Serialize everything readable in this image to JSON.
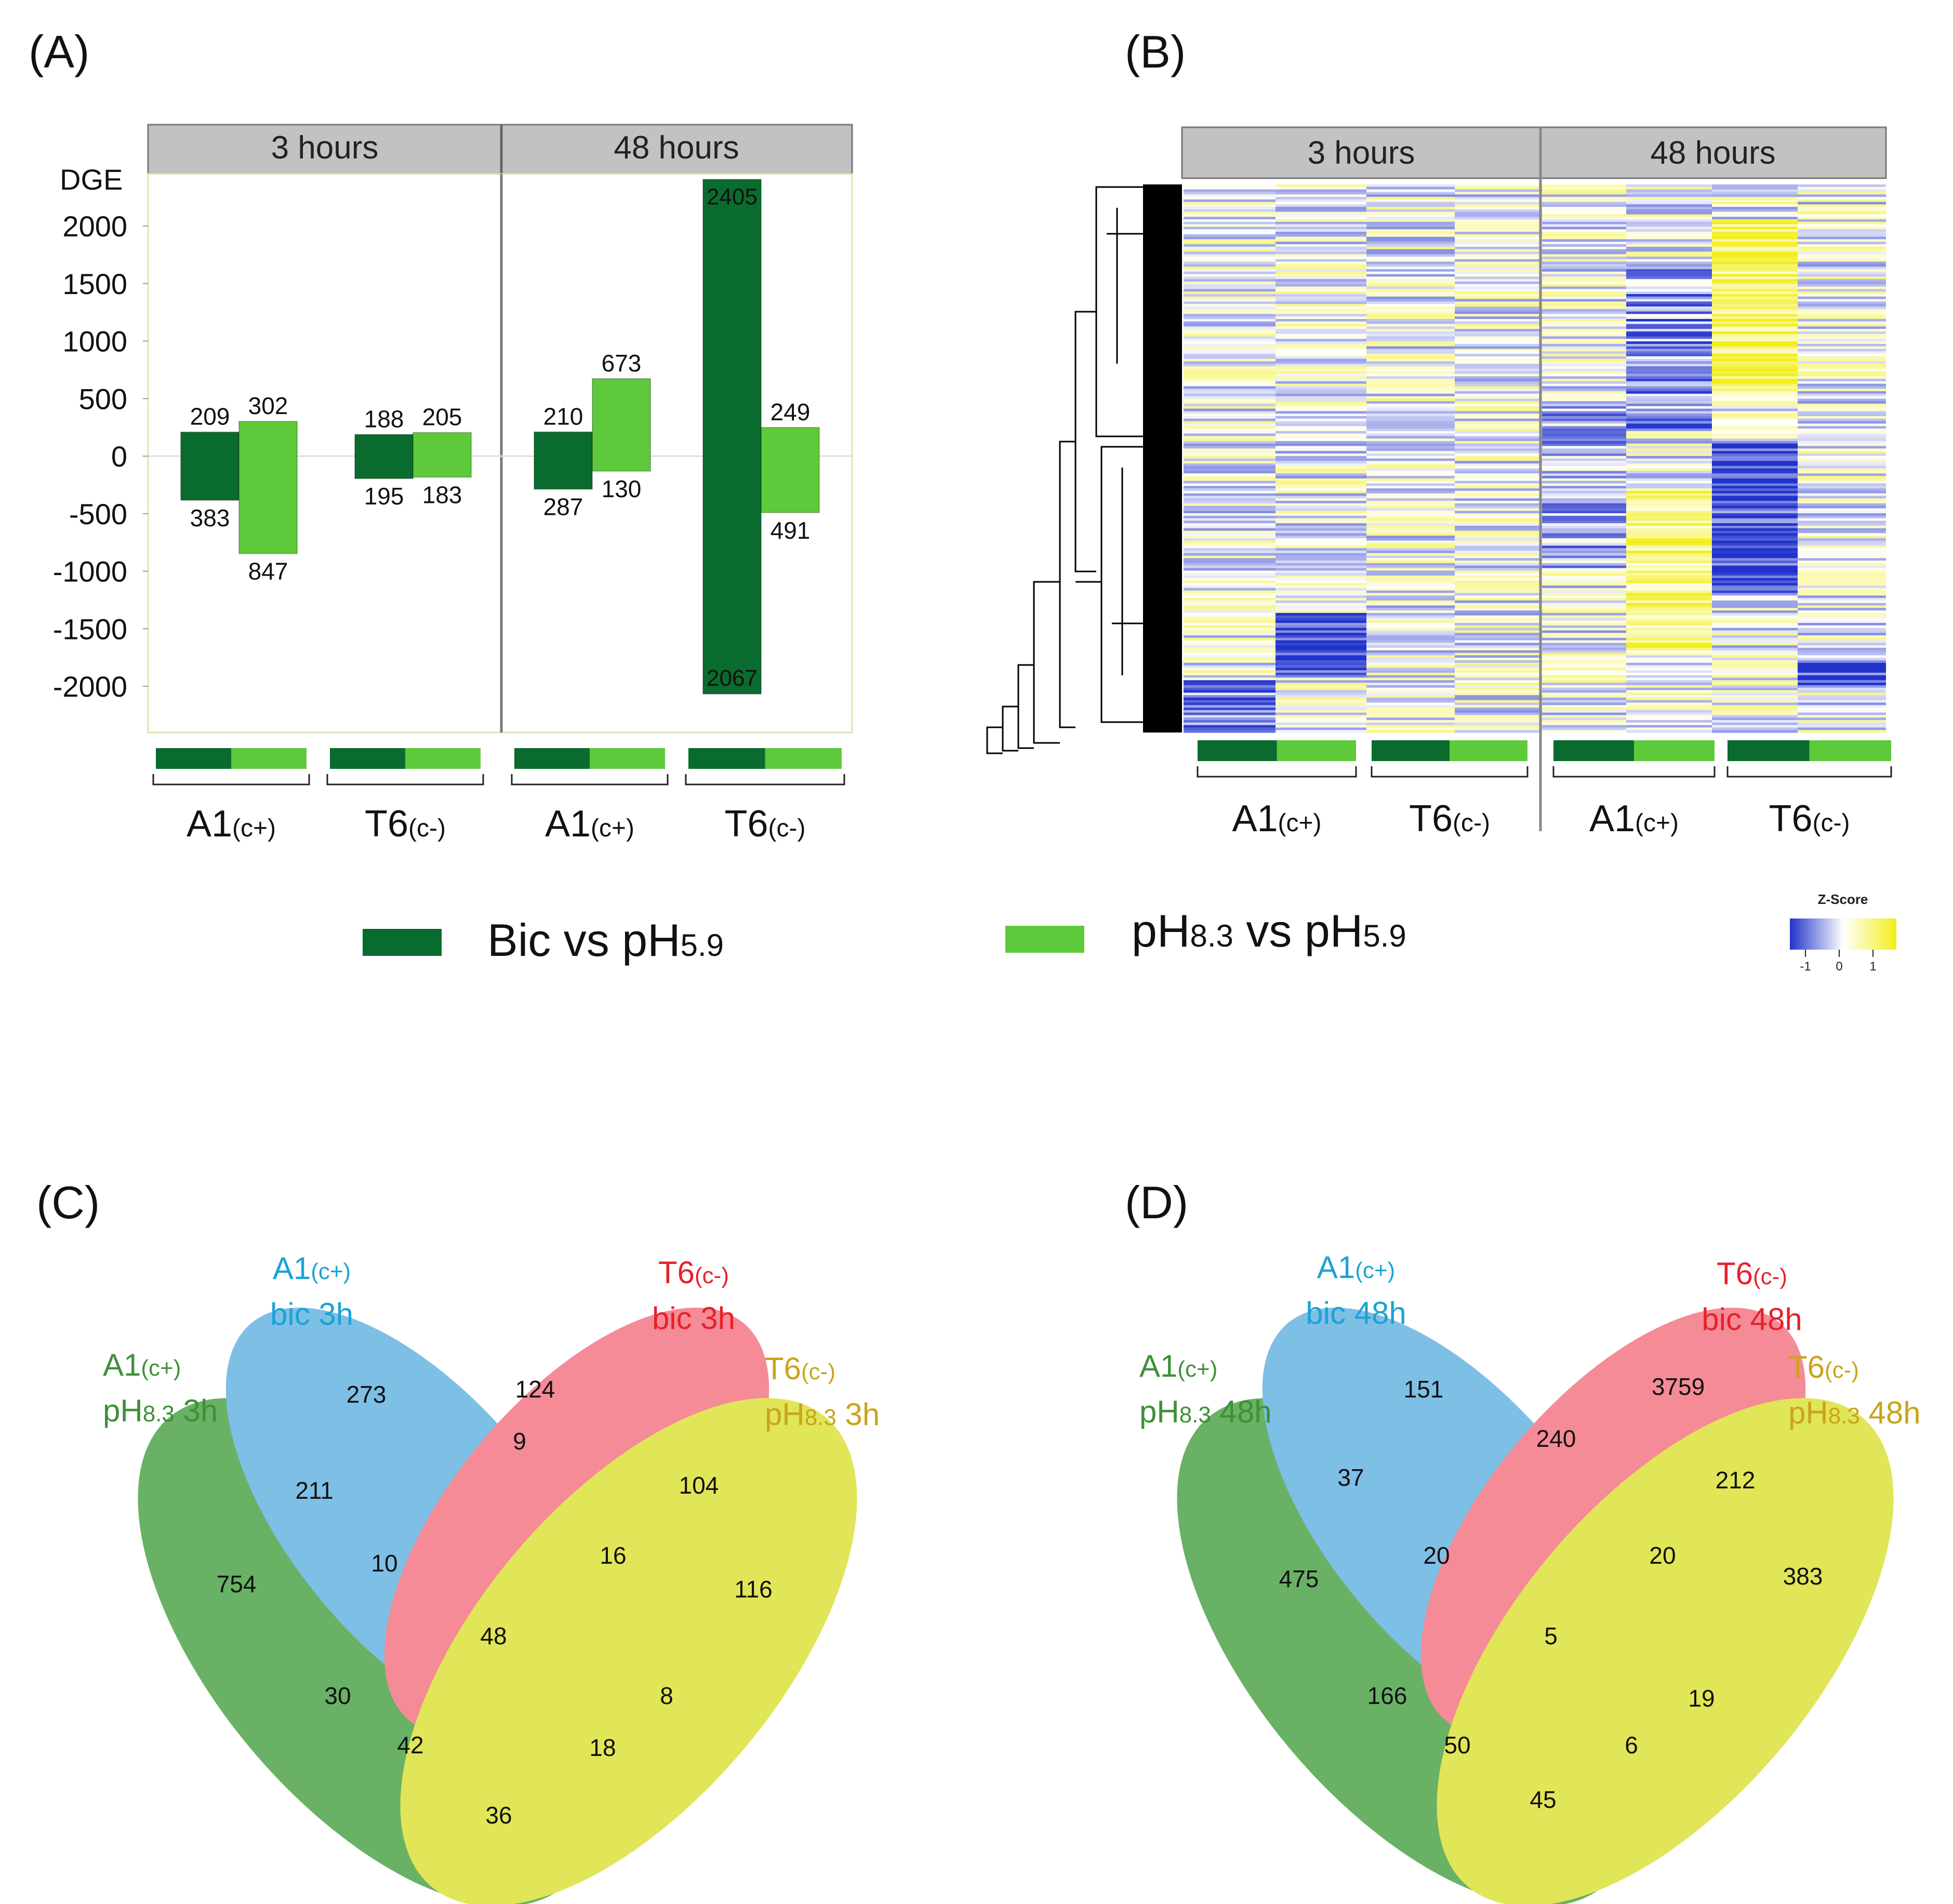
{
  "panels": {
    "a": "(A)",
    "b": "(B)",
    "c": "(C)",
    "d": "(D)"
  },
  "colors": {
    "bic": "#0a6b2e",
    "ph83": "#5ec93a",
    "strip": "#c2c2c2",
    "heat_blue": "#2233cc",
    "heat_yellow": "#f2ee1a",
    "venn_a1_bic": "#5aaee0",
    "venn_t6_bic": "#f26b7a",
    "venn_a1_ph": "#3f9c3a",
    "venn_t6_ph": "#d9de2a"
  },
  "chart_data": [
    {
      "id": "A",
      "type": "bar",
      "title": "",
      "ylabel": "DGE",
      "xlabel": "",
      "ylim": [
        -2300,
        2400
      ],
      "y_ticks": [
        2000,
        1500,
        1000,
        500,
        0,
        -500,
        -1000,
        -1500,
        -2000
      ],
      "y_tick_labels": [
        "2000",
        "1500",
        "1000",
        "500",
        "0",
        "-500",
        "-1000",
        "-1500",
        "-2000"
      ],
      "facets": [
        "3 hours",
        "48 hours"
      ],
      "groups": [
        {
          "facet": "3 hours",
          "genotype": "A1",
          "suffix": "(c+)"
        },
        {
          "facet": "3 hours",
          "genotype": "T6",
          "suffix": "(c-)"
        },
        {
          "facet": "48 hours",
          "genotype": "A1",
          "suffix": "(c+)"
        },
        {
          "facet": "48 hours",
          "genotype": "T6",
          "suffix": "(c-)"
        }
      ],
      "series": [
        {
          "name": "Bic vs pH5.9",
          "up": [
            209,
            188,
            210,
            2405
          ],
          "down": [
            383,
            195,
            287,
            2067
          ],
          "up_labels": [
            "209",
            "188",
            "210",
            "2405"
          ],
          "down_labels": [
            "383",
            "195",
            "287",
            "2067"
          ]
        },
        {
          "name": "pH8.3 vs pH5.9",
          "up": [
            302,
            205,
            673,
            249
          ],
          "down": [
            847,
            183,
            130,
            491
          ],
          "up_labels": [
            "302",
            "205",
            "673",
            "249"
          ],
          "down_labels": [
            "847",
            "183",
            "130",
            "491"
          ]
        }
      ]
    },
    {
      "id": "B",
      "type": "heatmap",
      "facets": [
        "3 hours",
        "48 hours"
      ],
      "columns": [
        "A1 3h Bic",
        "A1 3h pH8.3",
        "T6 3h Bic",
        "T6 3h pH8.3",
        "A1 48h Bic",
        "A1 48h pH8.3",
        "T6 48h Bic",
        "T6 48h pH8.3"
      ],
      "color_scale": {
        "title": "Z-Score",
        "min": -1,
        "max": 1,
        "ticks": [
          "-1",
          "0",
          "1"
        ]
      },
      "dendrogram": "rows"
    },
    {
      "id": "C",
      "type": "venn",
      "sets": [
        {
          "key": "a1_ph",
          "line1": "A1",
          "line1_sub": "(c+)",
          "line2": "pH",
          "line2_sub": "8.3",
          "line2_tail": " 3h"
        },
        {
          "key": "a1_bic",
          "line1": "A1",
          "line1_sub": "(c+)",
          "line2": "bic 3h"
        },
        {
          "key": "t6_bic",
          "line1": "T6",
          "line1_sub": "(c-)",
          "line2": "bic 3h"
        },
        {
          "key": "t6_ph",
          "line1": "T6",
          "line1_sub": "(c-)",
          "line2": "pH",
          "line2_sub": "8.3",
          "line2_tail": " 3h"
        }
      ],
      "regions": [
        {
          "sets": "a1_bic",
          "value": 273
        },
        {
          "sets": "t6_bic",
          "value": 124
        },
        {
          "sets": "a1_bic+t6_bic",
          "value": 9
        },
        {
          "sets": "a1_ph+a1_bic",
          "value": 211
        },
        {
          "sets": "t6_bic+t6_ph",
          "value": 104
        },
        {
          "sets": "a1_ph",
          "value": 754
        },
        {
          "sets": "a1_ph+a1_bic+t6_bic",
          "value": 10
        },
        {
          "sets": "a1_bic+t6_bic+t6_ph",
          "value": 16
        },
        {
          "sets": "t6_ph",
          "value": 116
        },
        {
          "sets": "all",
          "value": 48
        },
        {
          "sets": "a1_ph+t6_bic",
          "value": 30
        },
        {
          "sets": "a1_bic+t6_ph",
          "value": 8
        },
        {
          "sets": "a1_ph+t6_bic+t6_ph",
          "value": 42
        },
        {
          "sets": "a1_ph+a1_bic+t6_ph",
          "value": 18
        },
        {
          "sets": "a1_ph+t6_ph",
          "value": 36
        }
      ]
    },
    {
      "id": "D",
      "type": "venn",
      "sets": [
        {
          "key": "a1_ph",
          "line1": "A1",
          "line1_sub": "(c+)",
          "line2": "pH",
          "line2_sub": "8.3",
          "line2_tail": " 48h"
        },
        {
          "key": "a1_bic",
          "line1": "A1",
          "line1_sub": "(c+)",
          "line2": "bic 48h"
        },
        {
          "key": "t6_bic",
          "line1": "T6",
          "line1_sub": "(c-)",
          "line2": "bic 48h"
        },
        {
          "key": "t6_ph",
          "line1": "T6",
          "line1_sub": "(c-)",
          "line2": "pH",
          "line2_sub": "8.3",
          "line2_tail": " 48h"
        }
      ],
      "regions": [
        {
          "sets": "a1_bic",
          "value": 151
        },
        {
          "sets": "t6_bic",
          "value": 3759
        },
        {
          "sets": "a1_bic+t6_bic",
          "value": 240
        },
        {
          "sets": "a1_ph+a1_bic",
          "value": 37
        },
        {
          "sets": "t6_bic+t6_ph",
          "value": 212
        },
        {
          "sets": "a1_ph",
          "value": 475
        },
        {
          "sets": "a1_ph+a1_bic+t6_bic",
          "value": 20
        },
        {
          "sets": "a1_bic+t6_bic+t6_ph",
          "value": 20
        },
        {
          "sets": "t6_ph",
          "value": 383
        },
        {
          "sets": "all",
          "value": 5
        },
        {
          "sets": "a1_ph+t6_bic",
          "value": 166
        },
        {
          "sets": "a1_bic+t6_ph",
          "value": 19
        },
        {
          "sets": "a1_ph+t6_bic+t6_ph",
          "value": 50
        },
        {
          "sets": "a1_ph+a1_bic+t6_ph",
          "value": 6
        },
        {
          "sets": "a1_ph+t6_ph",
          "value": 45
        }
      ]
    }
  ],
  "legend": {
    "bic": {
      "text_main": "Bic vs pH",
      "text_sub": "5.9"
    },
    "ph": {
      "text_pre": "pH",
      "text_sub1": "8.3",
      "text_mid": " vs pH",
      "text_sub2": "5.9"
    }
  }
}
